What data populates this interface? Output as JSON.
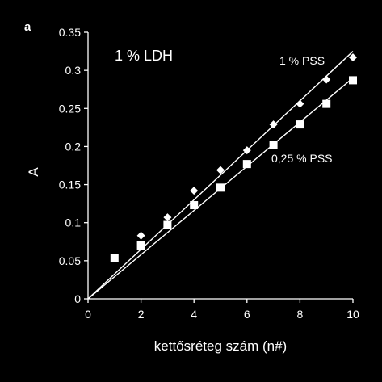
{
  "panel_label": "a",
  "chart_data": {
    "type": "scatter",
    "title": "",
    "xlabel": "kettősréteg szám (n#)",
    "ylabel": "A",
    "xlim": [
      0,
      10
    ],
    "ylim": [
      0,
      0.35
    ],
    "x_ticks": [
      "0",
      "2",
      "4",
      "6",
      "8",
      "10"
    ],
    "y_ticks": [
      "0",
      "0.05",
      "0.1",
      "0.15",
      "0.2",
      "0.25",
      "0.3",
      "0.35"
    ],
    "annotation": "1 % LDH",
    "grid": false,
    "colors": {
      "background": "#000000",
      "foreground": "#ffffff"
    },
    "series": [
      {
        "name": "1 % PSS",
        "marker": "diamond",
        "x": [
          1,
          2,
          3,
          4,
          5,
          6,
          7,
          8,
          9,
          10
        ],
        "y": [
          0.054,
          0.083,
          0.107,
          0.142,
          0.169,
          0.195,
          0.229,
          0.256,
          0.288,
          0.317
        ],
        "fit_line": {
          "from": [
            0,
            0
          ],
          "to": [
            10,
            0.325
          ]
        }
      },
      {
        "name": "0,25 % PSS",
        "marker": "square",
        "x": [
          1,
          2,
          3,
          4,
          5,
          6,
          7,
          8,
          9,
          10
        ],
        "y": [
          0.054,
          0.07,
          0.097,
          0.123,
          0.146,
          0.177,
          0.202,
          0.229,
          0.256,
          0.287
        ],
        "fit_line": {
          "from": [
            0,
            0
          ],
          "to": [
            10,
            0.29
          ]
        }
      }
    ]
  }
}
